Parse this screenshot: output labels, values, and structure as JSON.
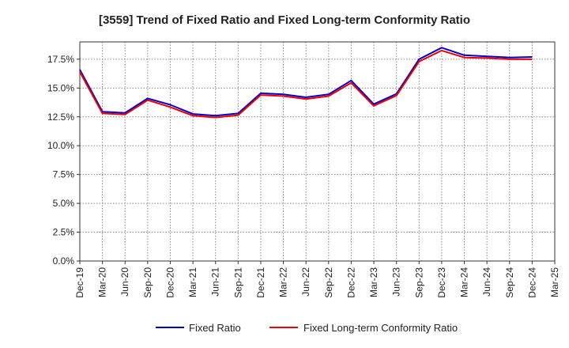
{
  "chart_data": {
    "type": "line",
    "title": "[3559]  Trend of Fixed Ratio and Fixed Long-term Conformity Ratio",
    "xlabel": "",
    "ylabel": "",
    "x_ticks": [
      "Dec-19",
      "Mar-20",
      "Jun-20",
      "Sep-20",
      "Dec-20",
      "Mar-21",
      "Jun-21",
      "Sep-21",
      "Dec-21",
      "Mar-22",
      "Jun-22",
      "Sep-22",
      "Dec-22",
      "Mar-23",
      "Jun-23",
      "Sep-23",
      "Dec-23",
      "Mar-24",
      "Jun-24",
      "Sep-24",
      "Dec-24",
      "Mar-25"
    ],
    "y_ticks": [
      "0.0%",
      "2.5%",
      "5.0%",
      "7.5%",
      "10.0%",
      "12.5%",
      "15.0%",
      "17.5%"
    ],
    "ylim": [
      0,
      19
    ],
    "grid": true,
    "legend_position": "bottom",
    "x": [
      "Dec-19",
      "Mar-20",
      "Jun-20",
      "Sep-20",
      "Dec-20",
      "Mar-21",
      "Jun-21",
      "Sep-21",
      "Dec-21",
      "Mar-22",
      "Jun-22",
      "Sep-22",
      "Dec-22",
      "Mar-23",
      "Jun-23",
      "Sep-23",
      "Dec-23",
      "Mar-24",
      "Jun-24",
      "Sep-24",
      "Dec-24"
    ],
    "series": [
      {
        "name": "Fixed Ratio",
        "color": "#0000cc",
        "values": [
          16.6,
          12.95,
          12.85,
          14.1,
          13.55,
          12.75,
          12.6,
          12.8,
          14.55,
          14.45,
          14.2,
          14.45,
          15.65,
          13.6,
          14.5,
          17.5,
          18.5,
          17.85,
          17.75,
          17.65,
          17.7
        ]
      },
      {
        "name": "Fixed Long-term Conformity Ratio",
        "color": "#ee0000",
        "values": [
          16.4,
          12.8,
          12.7,
          13.95,
          13.35,
          12.6,
          12.45,
          12.65,
          14.4,
          14.3,
          14.05,
          14.3,
          15.45,
          13.45,
          14.35,
          17.3,
          18.25,
          17.65,
          17.6,
          17.5,
          17.5
        ]
      }
    ]
  }
}
